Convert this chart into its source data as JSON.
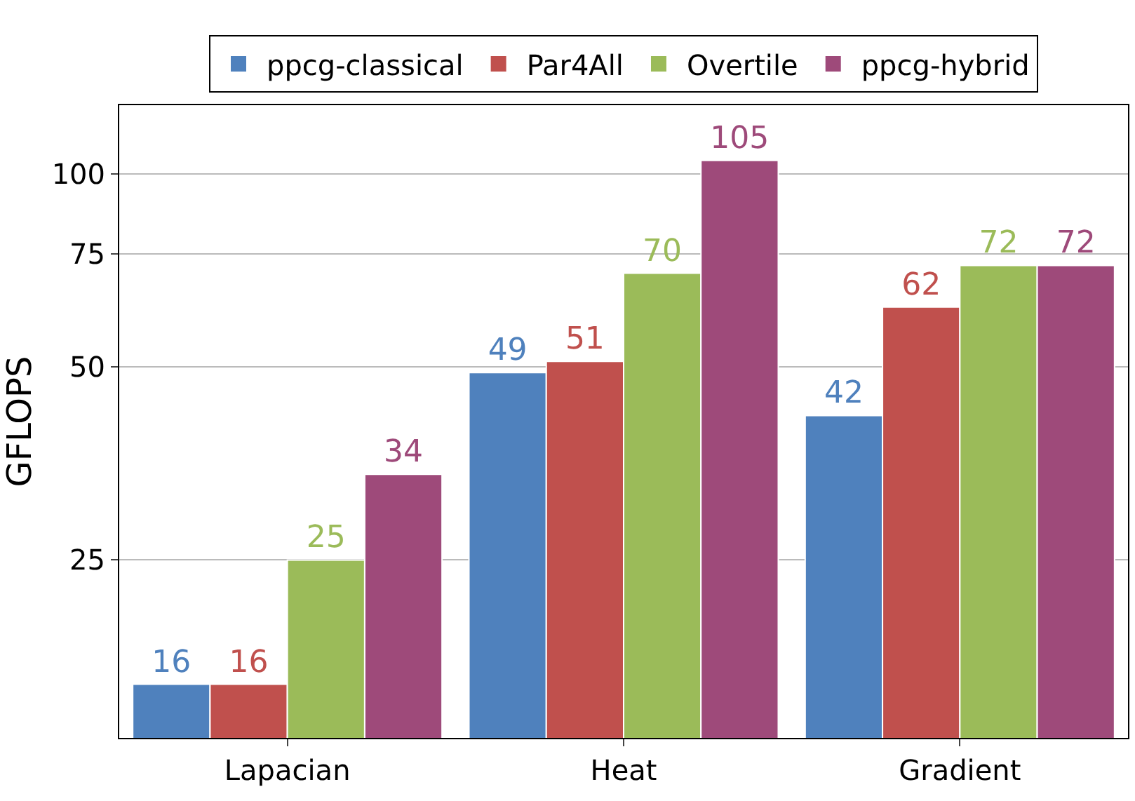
{
  "chart_data": {
    "type": "bar",
    "ylabel": "GFLOPS",
    "categories": [
      "Lapacian",
      "Heat",
      "Gradient"
    ],
    "series": [
      {
        "name": "ppcg-classical",
        "color": "#4f81bd",
        "values": [
          16,
          49,
          42
        ]
      },
      {
        "name": "Par4All",
        "color": "#c0504d",
        "values": [
          16,
          51,
          62
        ]
      },
      {
        "name": "Overtile",
        "color": "#9bbb59",
        "values": [
          25,
          70,
          72
        ]
      },
      {
        "name": "ppcg-hybrid",
        "color": "#9e4a7a",
        "values": [
          34,
          105,
          72
        ]
      }
    ],
    "log": "y",
    "ylim": [
      13.2,
      128
    ],
    "yticks": [
      25,
      50,
      75,
      100
    ],
    "grid": "y",
    "legend": "top",
    "data_labels": true
  }
}
